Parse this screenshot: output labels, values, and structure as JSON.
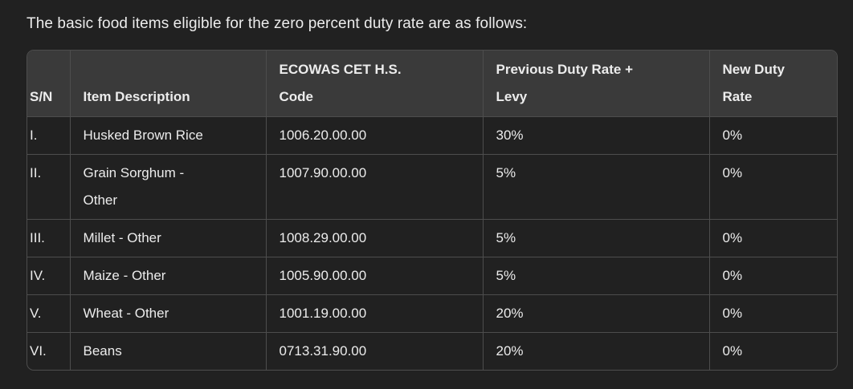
{
  "colors": {
    "background": "#212121",
    "text": "#ececec",
    "table_border": "#4d4d4d",
    "header_background": "#3a3a3a"
  },
  "intro": {
    "text": "The basic food items eligible for the zero percent duty rate are as follows:"
  },
  "table": {
    "columns": [
      "S/N",
      "Item Description",
      "ECOWAS CET H.S.\nCode",
      "Previous Duty Rate +\nLevy",
      "New Duty\nRate"
    ],
    "rows": [
      [
        "I.",
        "Husked Brown Rice",
        "1006.20.00.00",
        "30%",
        "0%"
      ],
      [
        "II.",
        "Grain Sorghum -\nOther",
        "1007.90.00.00",
        "5%",
        "0%"
      ],
      [
        "III.",
        "Millet - Other",
        "1008.29.00.00",
        "5%",
        "0%"
      ],
      [
        "IV.",
        "Maize - Other",
        "1005.90.00.00",
        "5%",
        "0%"
      ],
      [
        "V.",
        "Wheat - Other",
        "1001.19.00.00",
        "20%",
        "0%"
      ],
      [
        "VI.",
        "Beans",
        "0713.31.90.00",
        "20%",
        "0%"
      ]
    ]
  }
}
